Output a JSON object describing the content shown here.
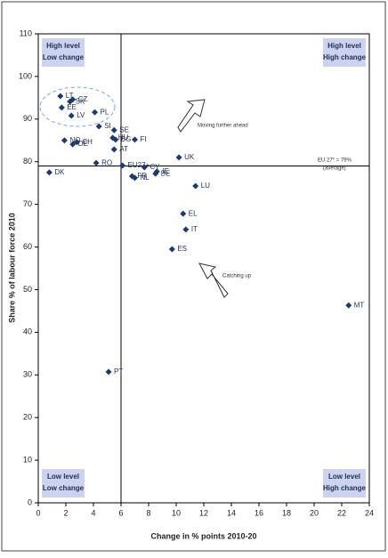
{
  "chart_data": {
    "type": "scatter",
    "x_label": "Change in % points 2010-20",
    "y_label": "Share % of labour force 2010",
    "color": "#1f3a6b",
    "xlim": [
      0,
      24
    ],
    "xticks": [
      0,
      2,
      4,
      6,
      8,
      10,
      12,
      14,
      16,
      18,
      20,
      22,
      24
    ],
    "ylim": [
      0,
      110
    ],
    "yticks": [
      0,
      10,
      20,
      30,
      40,
      50,
      60,
      70,
      80,
      90,
      100,
      110
    ],
    "vline": 6,
    "hline": 79,
    "labels": [
      "LT",
      "CZ",
      "SK",
      "EE",
      "LV",
      "PL",
      "SI",
      "SE",
      "HU",
      "BG",
      "FI",
      "AT",
      "NO",
      "CH",
      "DE",
      "RO",
      "DK",
      "EU27+",
      "CY",
      "IE",
      "BE",
      "NL",
      "FR",
      "UK",
      "LU",
      "EL",
      "IT",
      "ES",
      "MT",
      "PT"
    ],
    "x": [
      1.6,
      2.5,
      2.3,
      1.7,
      2.4,
      4.1,
      4.4,
      5.5,
      5.4,
      5.6,
      7.0,
      5.5,
      1.9,
      2.8,
      2.5,
      4.2,
      0.8,
      6.1,
      7.7,
      8.6,
      8.5,
      7.0,
      6.8,
      10.2,
      11.4,
      10.5,
      10.7,
      9.7,
      22.5,
      5.1
    ],
    "y": [
      95.4,
      94.6,
      94.1,
      92.7,
      90.8,
      91.6,
      88.3,
      87.4,
      85.6,
      85.2,
      85.2,
      82.9,
      85.0,
      84.6,
      84.1,
      79.7,
      77.5,
      79.1,
      78.7,
      77.7,
      77.2,
      76.2,
      76.6,
      81.0,
      74.3,
      67.8,
      64.1,
      59.5,
      46.3,
      30.7
    ],
    "quadrants": [
      [
        "High level",
        "Low change"
      ],
      [
        "High level",
        "High change"
      ],
      [
        "Low level",
        "Low change"
      ],
      [
        "Low level",
        "High change"
      ]
    ],
    "annotations": [
      "Moving further ahead",
      "Catching up",
      "EU 27* = 79%",
      "(average)"
    ]
  }
}
